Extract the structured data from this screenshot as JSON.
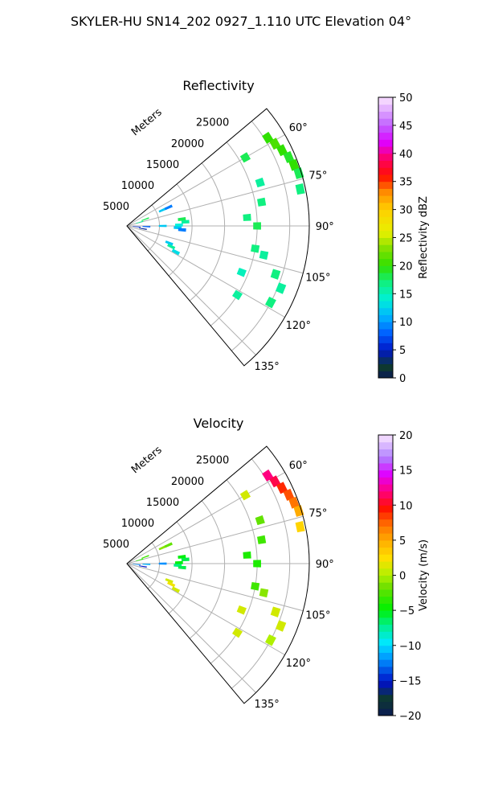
{
  "figure": {
    "title": "SKYLER-HU  SN14_202  0927_1.110 UTC Elevation 04°"
  },
  "chart_data": [
    {
      "type": "polar-sector",
      "title": "Reflectivity",
      "radial_label": "Meters",
      "radial_ticks": [
        "5000",
        "10000",
        "15000",
        "20000",
        "25000"
      ],
      "radial_tick_values": [
        5000,
        10000,
        15000,
        20000,
        25000
      ],
      "r_max": 28000,
      "angle_range_deg": [
        50,
        140
      ],
      "angle_ticks": [
        "60°",
        "75°",
        "90°",
        "105°",
        "120°",
        "135°"
      ],
      "angle_tick_values": [
        60,
        75,
        90,
        105,
        120,
        135
      ],
      "grid": true,
      "colorbar": {
        "label": "Reflectivity dBZ",
        "range": [
          0,
          50
        ],
        "ticks": [
          "0",
          "5",
          "10",
          "15",
          "20",
          "25",
          "30",
          "35",
          "40",
          "45",
          "50"
        ],
        "tick_values": [
          0,
          5,
          10,
          15,
          20,
          25,
          30,
          35,
          40,
          45,
          50
        ]
      },
      "echoes": [
        {
          "az": 58,
          "r": 25500,
          "value": 20
        },
        {
          "az": 61,
          "r": 26000,
          "value": 21
        },
        {
          "az": 64,
          "r": 26500,
          "value": 20
        },
        {
          "az": 67,
          "r": 27000,
          "value": 19
        },
        {
          "az": 70,
          "r": 27300,
          "value": 20
        },
        {
          "az": 73,
          "r": 27600,
          "value": 18
        },
        {
          "az": 78,
          "r": 27200,
          "value": 17
        },
        {
          "az": 60,
          "r": 21000,
          "value": 18
        },
        {
          "az": 72,
          "r": 21500,
          "value": 16
        },
        {
          "az": 80,
          "r": 21000,
          "value": 17
        },
        {
          "az": 86,
          "r": 18500,
          "value": 17
        },
        {
          "az": 90,
          "r": 20000,
          "value": 18
        },
        {
          "az": 100,
          "r": 20000,
          "value": 17
        },
        {
          "az": 102,
          "r": 21500,
          "value": 16
        },
        {
          "az": 108,
          "r": 24000,
          "value": 17
        },
        {
          "az": 112,
          "r": 25500,
          "value": 16
        },
        {
          "az": 118,
          "r": 25000,
          "value": 17
        },
        {
          "az": 112,
          "r": 19000,
          "value": 15
        },
        {
          "az": 122,
          "r": 20000,
          "value": 16
        },
        {
          "az": 66,
          "r": 6000,
          "value": 12
        },
        {
          "az": 66,
          "r": 7000,
          "value": 9
        },
        {
          "az": 70,
          "r": 3000,
          "value": 18
        },
        {
          "az": 74,
          "r": 2000,
          "value": 16
        },
        {
          "az": 83,
          "r": 8500,
          "value": 18
        },
        {
          "az": 86,
          "r": 9000,
          "value": 16
        },
        {
          "az": 89,
          "r": 8000,
          "value": 14
        },
        {
          "az": 92,
          "r": 7800,
          "value": 12
        },
        {
          "az": 94,
          "r": 8500,
          "value": 9
        },
        {
          "az": 90,
          "r": 5500,
          "value": 12
        },
        {
          "az": 92,
          "r": 3000,
          "value": 8
        },
        {
          "az": 95,
          "r": 1500,
          "value": 6
        },
        {
          "az": 100,
          "r": 2500,
          "value": 4
        },
        {
          "az": 112,
          "r": 7000,
          "value": 12
        },
        {
          "az": 115,
          "r": 7500,
          "value": 16
        },
        {
          "az": 118,
          "r": 8500,
          "value": 13
        }
      ]
    },
    {
      "type": "polar-sector",
      "title": "Velocity",
      "radial_label": "Meters",
      "radial_ticks": [
        "5000",
        "10000",
        "15000",
        "20000",
        "25000"
      ],
      "radial_tick_values": [
        5000,
        10000,
        15000,
        20000,
        25000
      ],
      "r_max": 28000,
      "angle_range_deg": [
        50,
        140
      ],
      "angle_ticks": [
        "60°",
        "75°",
        "90°",
        "105°",
        "120°",
        "135°"
      ],
      "angle_tick_values": [
        60,
        75,
        90,
        105,
        120,
        135
      ],
      "grid": true,
      "colorbar": {
        "label": "Velocity (m/s)",
        "range": [
          -20,
          20
        ],
        "ticks": [
          "−20",
          "−15",
          "−10",
          "−5",
          "0",
          "5",
          "10",
          "15",
          "20"
        ],
        "tick_values": [
          -20,
          -15,
          -10,
          -5,
          0,
          5,
          10,
          15,
          20
        ]
      },
      "echoes": [
        {
          "az": 58,
          "r": 25500,
          "value": 12
        },
        {
          "az": 61,
          "r": 26000,
          "value": 11
        },
        {
          "az": 64,
          "r": 26500,
          "value": 9
        },
        {
          "az": 67,
          "r": 27000,
          "value": 8
        },
        {
          "az": 70,
          "r": 27300,
          "value": 7
        },
        {
          "az": 73,
          "r": 27600,
          "value": 5
        },
        {
          "az": 78,
          "r": 27200,
          "value": 3
        },
        {
          "az": 60,
          "r": 21000,
          "value": 1
        },
        {
          "az": 72,
          "r": 21500,
          "value": -2
        },
        {
          "az": 80,
          "r": 21000,
          "value": -3
        },
        {
          "az": 86,
          "r": 18500,
          "value": -4
        },
        {
          "az": 90,
          "r": 20000,
          "value": -4
        },
        {
          "az": 100,
          "r": 20000,
          "value": -3
        },
        {
          "az": 102,
          "r": 21500,
          "value": -1
        },
        {
          "az": 108,
          "r": 24000,
          "value": 1
        },
        {
          "az": 112,
          "r": 25500,
          "value": 1
        },
        {
          "az": 118,
          "r": 25000,
          "value": 0
        },
        {
          "az": 112,
          "r": 19000,
          "value": 1
        },
        {
          "az": 122,
          "r": 20000,
          "value": 1
        },
        {
          "az": 66,
          "r": 6000,
          "value": -1
        },
        {
          "az": 66,
          "r": 7000,
          "value": -2
        },
        {
          "az": 70,
          "r": 3000,
          "value": -3
        },
        {
          "az": 74,
          "r": 2000,
          "value": -4
        },
        {
          "az": 83,
          "r": 8500,
          "value": -5
        },
        {
          "az": 86,
          "r": 9000,
          "value": -6
        },
        {
          "az": 89,
          "r": 8000,
          "value": -5
        },
        {
          "az": 92,
          "r": 7800,
          "value": -7
        },
        {
          "az": 94,
          "r": 8500,
          "value": -6
        },
        {
          "az": 90,
          "r": 5500,
          "value": -12
        },
        {
          "az": 92,
          "r": 3000,
          "value": -11
        },
        {
          "az": 95,
          "r": 1500,
          "value": -12
        },
        {
          "az": 100,
          "r": 2500,
          "value": -15
        },
        {
          "az": 112,
          "r": 7000,
          "value": 1
        },
        {
          "az": 115,
          "r": 7500,
          "value": 2
        },
        {
          "az": 118,
          "r": 8500,
          "value": 1
        }
      ]
    }
  ]
}
